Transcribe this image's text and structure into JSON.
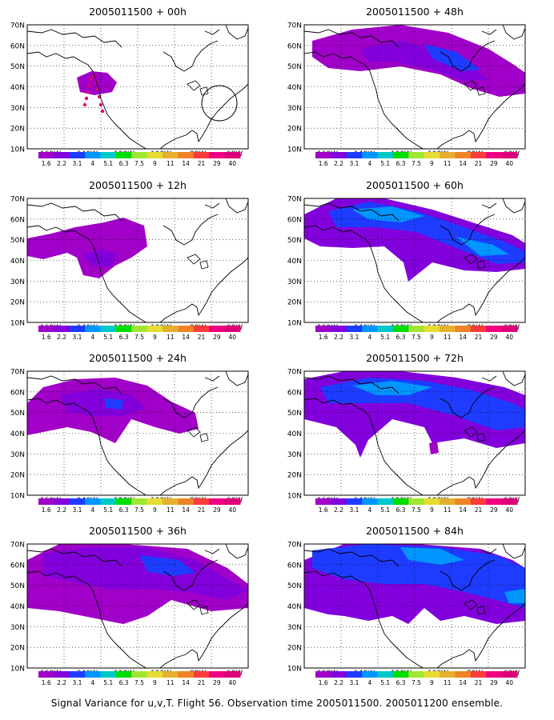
{
  "panels": [
    {
      "title": "2005011500 + 00h"
    },
    {
      "title": "2005011500 + 48h"
    },
    {
      "title": "2005011500 + 12h"
    },
    {
      "title": "2005011500 + 60h"
    },
    {
      "title": "2005011500 + 24h"
    },
    {
      "title": "2005011500 + 72h"
    },
    {
      "title": "2005011500 + 36h"
    },
    {
      "title": "2005011500 + 84h"
    }
  ],
  "lat_labels": [
    "70N",
    "60N",
    "50N",
    "40N",
    "30N",
    "20N",
    "10N"
  ],
  "lon_labels": [
    "160W",
    "140W",
    "120W",
    "100W",
    "80W",
    "60W"
  ],
  "colorbar": {
    "labels": [
      "1.6",
      "2.2",
      "3.1",
      "4",
      "5.1",
      "6.3",
      "7.5",
      "9",
      "11",
      "14",
      "21",
      "29",
      "40"
    ],
    "colors": [
      "#a000c8",
      "#8200dc",
      "#1e3cff",
      "#0096ff",
      "#00c8c8",
      "#00dc00",
      "#a0e632",
      "#e6dc32",
      "#e6af2d",
      "#f08228",
      "#fa3c3c",
      "#f00082",
      "#dc0078"
    ]
  },
  "caption": "Signal Variance for u,v,T. Flight 56. Observation time 2005011500. 2005011200 ensemble."
}
